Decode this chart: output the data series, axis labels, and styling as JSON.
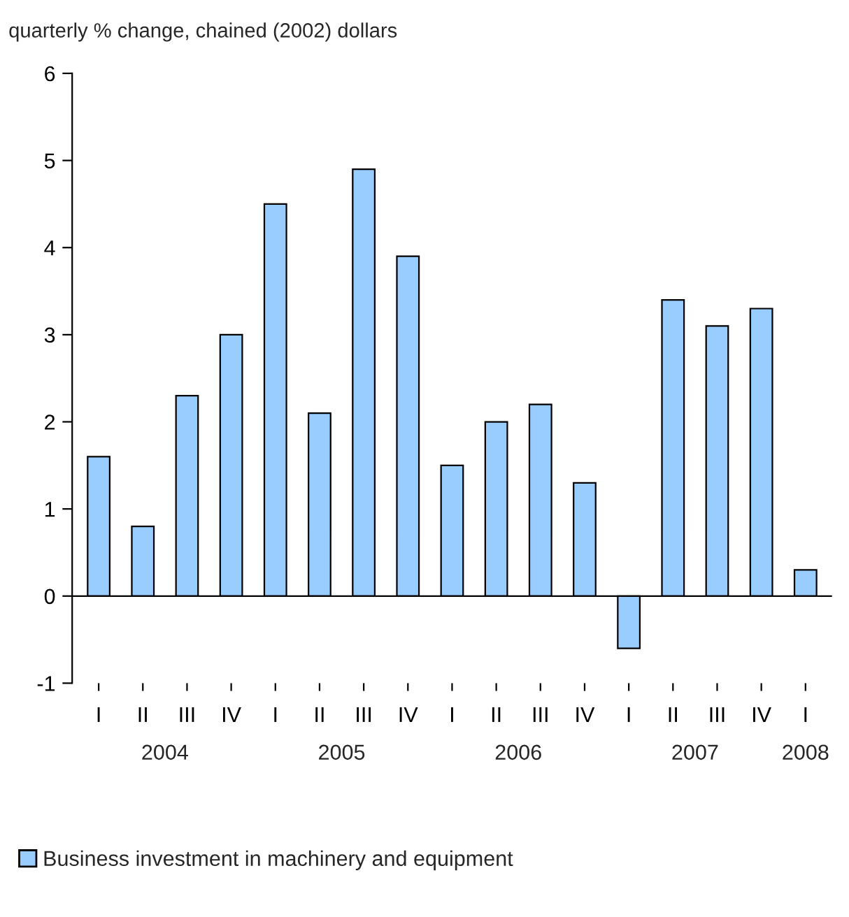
{
  "chart_data": {
    "type": "bar",
    "title": "quarterly % change, chained (2002) dollars",
    "categories": [
      "I",
      "II",
      "III",
      "IV",
      "I",
      "II",
      "III",
      "IV",
      "I",
      "II",
      "III",
      "IV",
      "I",
      "II",
      "III",
      "IV",
      "I"
    ],
    "series": [
      {
        "name": "Business investment in machinery and equipment",
        "color": "#99ccff",
        "values": [
          1.6,
          0.8,
          2.3,
          3.0,
          4.5,
          2.1,
          4.9,
          3.9,
          1.5,
          2.0,
          2.2,
          1.3,
          -0.6,
          3.4,
          3.1,
          3.3,
          0.3
        ]
      }
    ],
    "annotations": [
      "2004",
      "2005",
      "2006",
      "2007",
      "2008"
    ],
    "ylim": [
      -1,
      6
    ],
    "yticks": [
      -1,
      0,
      1,
      2,
      3,
      4,
      5,
      6
    ],
    "ref_lines": [
      {
        "axis": "y",
        "value": 0,
        "color": "#000000"
      }
    ],
    "legend": "bottom left"
  }
}
